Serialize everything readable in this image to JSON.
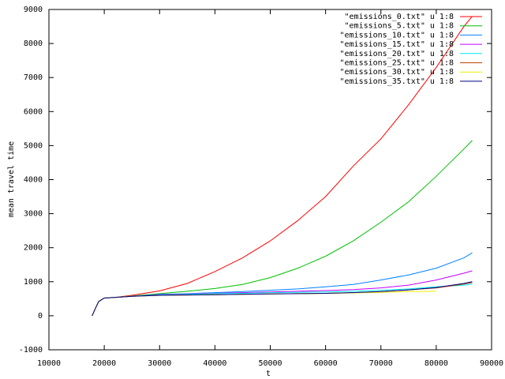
{
  "chart_data": {
    "type": "line",
    "xlabel": "t",
    "ylabel": "mean travel time",
    "x": [
      17800,
      18500,
      19000,
      20000,
      22000,
      25000,
      30000,
      35000,
      40000,
      45000,
      50000,
      55000,
      60000,
      65000,
      70000,
      75000,
      80000,
      85000,
      86500
    ],
    "series": [
      {
        "name": "\"emissions_0.txt\" u 1:8",
        "color": "#ff0000",
        "values": [
          0,
          250,
          420,
          520,
          540,
          600,
          730,
          950,
          1300,
          1700,
          2200,
          2800,
          3500,
          4400,
          5200,
          6200,
          7300,
          8500,
          8800
        ]
      },
      {
        "name": "\"emissions_5.txt\" u 1:8",
        "color": "#00c000",
        "values": [
          0,
          250,
          420,
          520,
          540,
          580,
          650,
          720,
          800,
          920,
          1120,
          1400,
          1750,
          2200,
          2750,
          3350,
          4100,
          4900,
          5150
        ]
      },
      {
        "name": "\"emissions_10.txt\" u 1:8",
        "color": "#0080ff",
        "values": [
          0,
          250,
          420,
          520,
          540,
          570,
          630,
          650,
          680,
          710,
          750,
          790,
          850,
          920,
          1050,
          1200,
          1400,
          1700,
          1850
        ]
      },
      {
        "name": "\"emissions_15.txt\" u 1:8",
        "color": "#c000ff",
        "values": [
          0,
          250,
          420,
          520,
          540,
          570,
          620,
          640,
          660,
          680,
          700,
          720,
          740,
          770,
          820,
          900,
          1050,
          1250,
          1320
        ]
      },
      {
        "name": "\"emissions_20.txt\" u 1:8",
        "color": "#00eeee",
        "values": [
          0,
          250,
          420,
          520,
          540,
          570,
          610,
          630,
          650,
          660,
          680,
          690,
          700,
          720,
          750,
          790,
          850,
          900,
          930
        ]
      },
      {
        "name": "\"emissions_25.txt\" u 1:8",
        "color": "#c04000",
        "values": [
          0,
          250,
          420,
          520,
          540,
          570,
          600,
          610,
          620,
          630,
          640,
          650,
          660,
          680,
          710,
          760,
          820,
          930,
          980
        ]
      },
      {
        "name": "\"emissions_30.txt\" u 1:8",
        "color": "#eeee00",
        "values": [
          0,
          250,
          420,
          520,
          540,
          570,
          600,
          610,
          620,
          630,
          640,
          650,
          660,
          670,
          690,
          710,
          720,
          null,
          null
        ]
      },
      {
        "name": "\"emissions_35.txt\" u 1:8",
        "color": "#000080",
        "values": [
          0,
          250,
          420,
          520,
          540,
          570,
          600,
          610,
          620,
          630,
          640,
          650,
          660,
          680,
          710,
          760,
          830,
          950,
          1000
        ]
      }
    ],
    "xlim": [
      10000,
      90000
    ],
    "xticks": [
      10000,
      20000,
      30000,
      40000,
      50000,
      60000,
      70000,
      80000,
      90000
    ],
    "ylim": [
      -1000,
      9000
    ],
    "yticks": [
      -1000,
      0,
      1000,
      2000,
      3000,
      4000,
      5000,
      6000,
      7000,
      8000,
      9000
    ],
    "legend": "top-right"
  }
}
